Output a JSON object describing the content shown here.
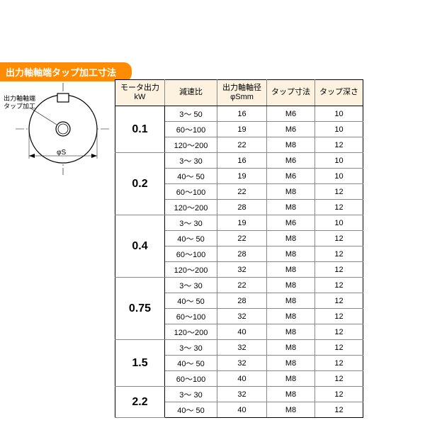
{
  "title": "出力軸軸端タップ加工寸法",
  "diagram": {
    "label": "出力軸軸端\nタップ加工",
    "dim_text": "φS"
  },
  "table": {
    "columns": [
      "モータ出力\nkW",
      "減速比",
      "出力軸軸径\nφSmm",
      "タップ寸法",
      "タップ深さ"
    ],
    "groups": [
      {
        "motor": "0.1",
        "rows": [
          {
            "ratio": "3～  50",
            "dia": "16",
            "tap": "M6",
            "depth": "10"
          },
          {
            "ratio": "60～100",
            "dia": "19",
            "tap": "M6",
            "depth": "10"
          },
          {
            "ratio": "120～200",
            "dia": "22",
            "tap": "M8",
            "depth": "12"
          }
        ]
      },
      {
        "motor": "0.2",
        "rows": [
          {
            "ratio": "3～  30",
            "dia": "16",
            "tap": "M6",
            "depth": "10"
          },
          {
            "ratio": "40～  50",
            "dia": "19",
            "tap": "M6",
            "depth": "10"
          },
          {
            "ratio": "60～100",
            "dia": "22",
            "tap": "M8",
            "depth": "12"
          },
          {
            "ratio": "120～200",
            "dia": "28",
            "tap": "M8",
            "depth": "12"
          }
        ]
      },
      {
        "motor": "0.4",
        "rows": [
          {
            "ratio": "3～  30",
            "dia": "19",
            "tap": "M6",
            "depth": "10"
          },
          {
            "ratio": "40～  50",
            "dia": "22",
            "tap": "M8",
            "depth": "12"
          },
          {
            "ratio": "60～100",
            "dia": "28",
            "tap": "M8",
            "depth": "12"
          },
          {
            "ratio": "120～200",
            "dia": "32",
            "tap": "M8",
            "depth": "12"
          }
        ]
      },
      {
        "motor": "0.75",
        "rows": [
          {
            "ratio": "3～  30",
            "dia": "22",
            "tap": "M8",
            "depth": "12"
          },
          {
            "ratio": "40～  50",
            "dia": "28",
            "tap": "M8",
            "depth": "12"
          },
          {
            "ratio": "60～100",
            "dia": "32",
            "tap": "M8",
            "depth": "12"
          },
          {
            "ratio": "120～200",
            "dia": "40",
            "tap": "M8",
            "depth": "12"
          }
        ]
      },
      {
        "motor": "1.5",
        "rows": [
          {
            "ratio": "3～  30",
            "dia": "32",
            "tap": "M8",
            "depth": "12"
          },
          {
            "ratio": "40～  50",
            "dia": "32",
            "tap": "M8",
            "depth": "12"
          },
          {
            "ratio": "60～100",
            "dia": "40",
            "tap": "M8",
            "depth": "12"
          }
        ]
      },
      {
        "motor": "2.2",
        "rows": [
          {
            "ratio": "3～  30",
            "dia": "32",
            "tap": "M8",
            "depth": "12"
          },
          {
            "ratio": "40～  50",
            "dia": "40",
            "tap": "M8",
            "depth": "12"
          }
        ]
      }
    ]
  },
  "colors": {
    "title_bg": "#ff8c00",
    "header_bg": "#fdf2e0",
    "border": "#000000",
    "subborder": "#888888"
  }
}
